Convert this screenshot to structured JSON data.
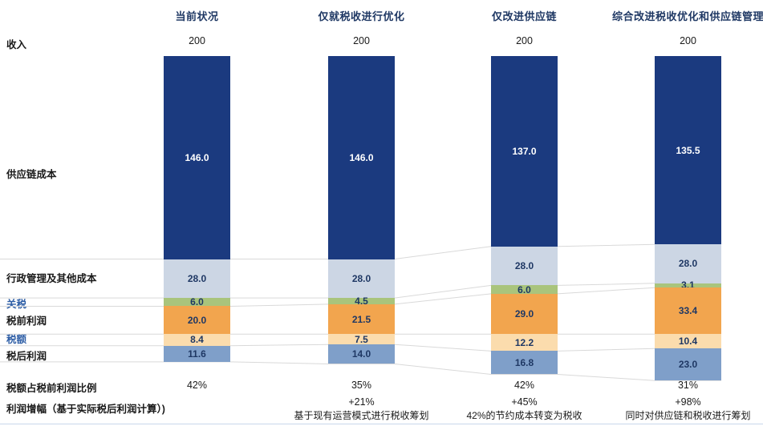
{
  "left_labels": [
    {
      "id": "revenue",
      "text": "收入",
      "style": "black"
    },
    {
      "id": "supply-chain-cost",
      "text": "供应链成本",
      "style": "black"
    },
    {
      "id": "admin-other-cost",
      "text": "行政管理及其他成本",
      "style": "black"
    },
    {
      "id": "tariff",
      "text": "关税",
      "style": "blue"
    },
    {
      "id": "pretax-profit",
      "text": "税前利润",
      "style": "black"
    },
    {
      "id": "tax-amount",
      "text": "税额",
      "style": "blue"
    },
    {
      "id": "posttax-profit",
      "text": "税后利润",
      "style": "black"
    },
    {
      "id": "tax-ratio",
      "text": "税额占税前利润比例",
      "style": "black"
    },
    {
      "id": "profit-growth",
      "text": "利润增幅（基于实际税后利润计算）)",
      "style": "black"
    }
  ],
  "colors": {
    "header_text": "#1f3864",
    "value_text": "#1f3864",
    "blue_label_text": "#2e5ea6",
    "connector_line": "#d9d9d9",
    "bottom_rule": "#c8d6ea"
  },
  "chart_data": {
    "type": "bar",
    "stacked": true,
    "title": "",
    "categories": [
      "当前状况",
      "仅就税收进行优化",
      "仅改进供应链",
      "综合改进税收优化和供应链管理"
    ],
    "revenue_label": "收入",
    "revenue": [
      "200",
      "200",
      "200",
      "200"
    ],
    "series": [
      {
        "name": "供应链成本",
        "color": "#1b3a7f",
        "text": "light",
        "values": [
          146.0,
          146.0,
          137.0,
          135.5
        ]
      },
      {
        "name": "行政管理及其他成本",
        "color": "#ccd6e4",
        "text": "dark",
        "values": [
          28.0,
          28.0,
          28.0,
          28.0
        ]
      },
      {
        "name": "关税",
        "color": "#a9c47c",
        "text": "dark",
        "values": [
          6.0,
          4.5,
          6.0,
          3.1
        ]
      },
      {
        "name": "税前利润",
        "color": "#f2a54e",
        "text": "dark",
        "values": [
          20.0,
          21.5,
          29.0,
          33.4
        ]
      },
      {
        "name": "税额",
        "color": "#fbdcad",
        "text": "dark",
        "values": [
          8.4,
          7.5,
          12.2,
          10.4
        ]
      },
      {
        "name": "税后利润",
        "color": "#7f9fc9",
        "text": "dark",
        "values": [
          11.6,
          14.0,
          16.8,
          23.0
        ]
      }
    ],
    "tax_ratio_row": {
      "label": "税额占税前利润比例",
      "values": [
        "42%",
        "35%",
        "42%",
        "31%"
      ]
    },
    "profit_growth_row": {
      "label": "利润增幅（基于实际税后利润计算）)",
      "values": [
        "",
        "+21%",
        "+45%",
        "+98%"
      ]
    },
    "annotations": [
      "",
      "基于现有运营模式进行税收筹划",
      "42%的节约成本转变为税收",
      "同时对供应链和税收进行筹划"
    ],
    "legend_position": "none",
    "grid": "connector-lines-between-stacks"
  }
}
